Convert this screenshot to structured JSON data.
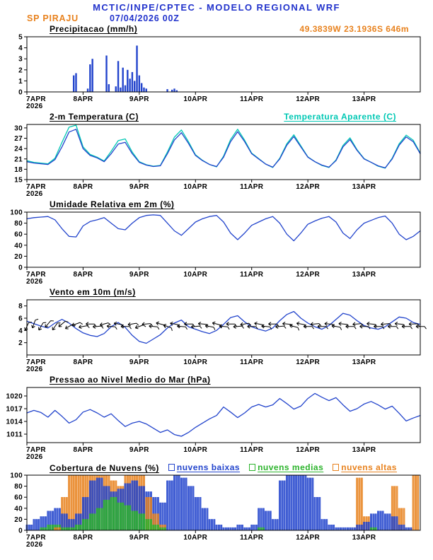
{
  "header": {
    "title": "MCTIC/INPE/CPTEC - MODELO REGIONAL WRF",
    "station": "SP PIRAJU",
    "run": "07/04/2026 00Z",
    "location": "49.3839W 23.1936S 646m"
  },
  "colors": {
    "blue": "#2244cc",
    "text_blue": "#2233cc",
    "orange": "#e8821e",
    "cyan": "#00c8b4",
    "green": "#2db42d",
    "black": "#000000"
  },
  "x_axis": {
    "labels": [
      "7APR",
      "8APR",
      "9APR",
      "10APR",
      "11APR",
      "12APR",
      "13APR"
    ],
    "year": "2026",
    "tick_hours": [
      0,
      24,
      48,
      72,
      96,
      120,
      144
    ],
    "span_hours": 168
  },
  "chart_data": [
    {
      "id": "precipitation",
      "type": "bar",
      "title": "Precipitacao (mm/h)",
      "ylim": [
        0,
        5
      ],
      "yticks": [
        0,
        1,
        2,
        3,
        4,
        5
      ],
      "bar_color": "#2244cc",
      "bars": [
        [
          20,
          1.5
        ],
        [
          21,
          1.7
        ],
        [
          26,
          0.3
        ],
        [
          27,
          2.5
        ],
        [
          28,
          3.0
        ],
        [
          34,
          3.3
        ],
        [
          35,
          0.7
        ],
        [
          38,
          0.5
        ],
        [
          39,
          2.8
        ],
        [
          40,
          0.4
        ],
        [
          41,
          2.2
        ],
        [
          42,
          0.6
        ],
        [
          43,
          2.0
        ],
        [
          44,
          1.2
        ],
        [
          45,
          1.8
        ],
        [
          46,
          1.0
        ],
        [
          47,
          4.2
        ],
        [
          48,
          1.5
        ],
        [
          49,
          0.8
        ],
        [
          50,
          0.4
        ],
        [
          51,
          0.3
        ],
        [
          60,
          0.25
        ],
        [
          62,
          0.2
        ],
        [
          63,
          0.3
        ],
        [
          64,
          0.15
        ]
      ]
    },
    {
      "id": "temperature-2m",
      "type": "line",
      "title": "2-m Temperatura (C)",
      "legend": "Temperatura Aparente (C)",
      "ylim": [
        15,
        31
      ],
      "yticks": [
        15,
        18,
        21,
        24,
        27,
        30
      ],
      "x_step_hours": 3,
      "series": [
        {
          "name": "2-m Temperatura (C)",
          "color": "#2244cc",
          "values": [
            20.2,
            19.8,
            19.6,
            19.4,
            20.8,
            24.5,
            28.8,
            29.6,
            24.0,
            22.0,
            21.3,
            20.2,
            22.5,
            25.3,
            25.8,
            22.5,
            20.0,
            19.2,
            18.8,
            19.0,
            22.5,
            26.5,
            28.6,
            25.5,
            22.0,
            20.5,
            19.4,
            18.8,
            21.5,
            26.0,
            28.9,
            26.0,
            22.5,
            21.0,
            19.5,
            18.6,
            21.0,
            25.0,
            27.5,
            24.5,
            21.5,
            20.2,
            19.2,
            18.6,
            20.5,
            24.5,
            26.6,
            23.5,
            21.0,
            20.0,
            19.0,
            18.4,
            21.0,
            25.0,
            27.4,
            26.0,
            22.5
          ]
        },
        {
          "name": "Temperatura Aparente (C)",
          "color": "#00c8b4",
          "values": [
            20.5,
            20.0,
            19.8,
            19.6,
            21.2,
            25.8,
            30.2,
            30.8,
            24.5,
            22.3,
            21.5,
            20.4,
            23.2,
            26.3,
            26.8,
            23.0,
            20.2,
            19.3,
            18.9,
            19.1,
            23.0,
            27.3,
            29.4,
            26.0,
            22.2,
            20.6,
            19.4,
            18.7,
            21.8,
            26.6,
            29.6,
            26.4,
            22.7,
            21.1,
            19.5,
            18.5,
            21.2,
            25.4,
            28.0,
            24.8,
            21.6,
            20.2,
            19.1,
            18.5,
            20.7,
            24.9,
            27.1,
            23.7,
            21.1,
            20.0,
            18.9,
            18.3,
            21.2,
            25.4,
            27.9,
            26.4,
            22.7
          ]
        }
      ]
    },
    {
      "id": "relative-humidity-2m",
      "type": "line",
      "title": "Umidade Relativa em 2m (%)",
      "ylim": [
        0,
        100
      ],
      "yticks": [
        0,
        20,
        40,
        60,
        80,
        100
      ],
      "x_step_hours": 3,
      "series": [
        {
          "name": "Umidade Relativa",
          "color": "#2244cc",
          "values": [
            88,
            90,
            91,
            92,
            86,
            70,
            56,
            55,
            75,
            83,
            86,
            90,
            80,
            70,
            68,
            80,
            90,
            94,
            95,
            94,
            80,
            66,
            58,
            70,
            82,
            88,
            92,
            94,
            82,
            62,
            50,
            62,
            76,
            82,
            88,
            92,
            80,
            60,
            48,
            62,
            78,
            84,
            89,
            92,
            82,
            62,
            52,
            68,
            80,
            85,
            90,
            93,
            80,
            60,
            50,
            56,
            66
          ]
        }
      ]
    },
    {
      "id": "wind-10m",
      "type": "line",
      "title": "Vento em 10m (m/s)",
      "ylim": [
        0,
        9
      ],
      "yticks": [
        2,
        4,
        6,
        8
      ],
      "x_step_hours": 3,
      "series": [
        {
          "name": "Vento em 10m",
          "color": "#2244cc",
          "values": [
            5.5,
            5.1,
            4.7,
            4.4,
            5.2,
            5.8,
            5.2,
            4.3,
            3.6,
            3.2,
            3.0,
            3.5,
            4.6,
            5.3,
            4.5,
            3.2,
            2.2,
            1.9,
            2.6,
            3.3,
            4.4,
            5.2,
            5.7,
            4.6,
            4.2,
            3.8,
            3.5,
            4.0,
            5.0,
            6.1,
            6.4,
            5.4,
            4.6,
            4.2,
            3.9,
            4.4,
            5.6,
            6.6,
            7.1,
            6.0,
            5.2,
            4.6,
            4.2,
            4.8,
            5.8,
            6.8,
            6.5,
            5.6,
            4.8,
            4.4,
            4.2,
            4.6,
            5.4,
            6.2,
            6.0,
            5.3,
            5.0
          ]
        }
      ],
      "barbs": {
        "level": 4.8,
        "angles": [
          115,
          110,
          120,
          130,
          125,
          140,
          150,
          160,
          170,
          180,
          175,
          165,
          185,
          190,
          180,
          170,
          160,
          175,
          185,
          195,
          200,
          190,
          185,
          180,
          175,
          185,
          190,
          195,
          185,
          180,
          175,
          170,
          180,
          190,
          185,
          180,
          175,
          185,
          195,
          190,
          180,
          175,
          180,
          185,
          190,
          185,
          180,
          175,
          180,
          185,
          180,
          175,
          180,
          185,
          180,
          178,
          180
        ]
      }
    },
    {
      "id": "mean-sea-level-pressure",
      "type": "line",
      "title": "Pressao ao Nivel Medio do Mar (hPa)",
      "ylim": [
        1009,
        1022
      ],
      "yticks": [
        1011,
        1014,
        1017,
        1020
      ],
      "x_step_hours": 3,
      "series": [
        {
          "name": "Pressao",
          "color": "#2244cc",
          "values": [
            1016.0,
            1016.6,
            1016.1,
            1015.0,
            1016.6,
            1015.2,
            1013.6,
            1014.4,
            1016.2,
            1016.8,
            1016.0,
            1015.0,
            1015.8,
            1014.2,
            1012.8,
            1013.6,
            1014.0,
            1013.4,
            1012.4,
            1011.4,
            1012.0,
            1010.9,
            1010.5,
            1011.4,
            1012.6,
            1013.6,
            1014.6,
            1015.4,
            1017.4,
            1016.2,
            1014.9,
            1016.0,
            1017.4,
            1018.0,
            1017.4,
            1017.9,
            1019.4,
            1018.2,
            1016.9,
            1017.6,
            1019.4,
            1020.6,
            1019.7,
            1018.9,
            1019.6,
            1017.9,
            1016.4,
            1017.0,
            1018.1,
            1018.7,
            1017.9,
            1016.9,
            1017.6,
            1015.9,
            1014.1,
            1014.8,
            1015.4
          ]
        }
      ]
    },
    {
      "id": "cloud-cover",
      "type": "bar-multi",
      "title": "Cobertura de Nuvens (%)",
      "ylim": [
        0,
        100
      ],
      "yticks": [
        0,
        20,
        40,
        60,
        80,
        100
      ],
      "x_step_hours": 3,
      "series": [
        {
          "name": "nuvens baixas",
          "color": "#2244cc",
          "values": [
            10,
            20,
            25,
            35,
            40,
            30,
            20,
            30,
            60,
            90,
            95,
            80,
            70,
            75,
            85,
            90,
            80,
            70,
            60,
            50,
            90,
            100,
            95,
            80,
            60,
            40,
            20,
            10,
            5,
            5,
            10,
            5,
            10,
            40,
            35,
            20,
            90,
            100,
            100,
            100,
            95,
            60,
            20,
            10,
            5,
            5,
            5,
            10,
            15,
            30,
            35,
            30,
            25,
            10,
            5,
            0,
            0
          ]
        },
        {
          "name": "nuvens medias",
          "color": "#2db42d",
          "values": [
            0,
            0,
            5,
            10,
            10,
            5,
            5,
            10,
            20,
            30,
            40,
            55,
            60,
            50,
            45,
            35,
            30,
            20,
            10,
            5,
            0,
            0,
            0,
            0,
            0,
            0,
            0,
            0,
            0,
            0,
            0,
            0,
            0,
            5,
            0,
            0,
            0,
            0,
            0,
            0,
            0,
            0,
            0,
            0,
            0,
            0,
            0,
            0,
            0,
            5,
            0,
            0,
            0,
            0,
            0,
            0,
            0
          ]
        },
        {
          "name": "nuvens altas",
          "color": "#e8821e",
          "values": [
            0,
            0,
            0,
            0,
            5,
            60,
            100,
            100,
            100,
            100,
            100,
            100,
            90,
            80,
            100,
            100,
            100,
            60,
            30,
            10,
            0,
            0,
            0,
            0,
            0,
            0,
            0,
            0,
            0,
            0,
            0,
            0,
            0,
            0,
            0,
            0,
            0,
            0,
            0,
            0,
            0,
            0,
            0,
            0,
            0,
            0,
            0,
            95,
            25,
            0,
            0,
            0,
            80,
            40,
            0,
            100,
            100
          ]
        }
      ]
    }
  ]
}
